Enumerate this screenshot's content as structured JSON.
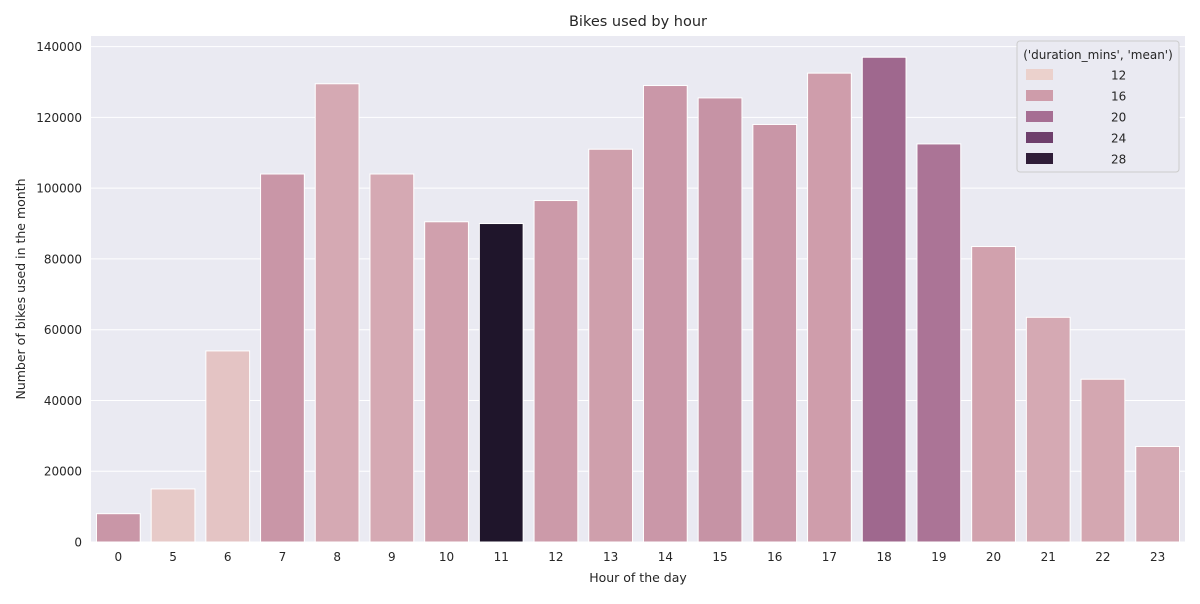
{
  "chart_data": {
    "type": "bar",
    "title": "Bikes used by hour",
    "xlabel": "Hour of the day",
    "ylabel": "Number of bikes used in the month",
    "categories": [
      "0",
      "5",
      "6",
      "7",
      "8",
      "9",
      "10",
      "11",
      "12",
      "13",
      "14",
      "15",
      "16",
      "17",
      "18",
      "19",
      "20",
      "21",
      "22",
      "23"
    ],
    "values": [
      8000,
      15000,
      54000,
      104000,
      129500,
      104000,
      90500,
      90000,
      96500,
      111000,
      129000,
      125500,
      118000,
      132500,
      137000,
      112500,
      83500,
      63500,
      46000,
      27000
    ],
    "hue_values": [
      16.5,
      12.5,
      13.0,
      16.5,
      15.0,
      15.0,
      15.7,
      29.0,
      16.2,
      15.8,
      16.4,
      16.8,
      16.5,
      15.9,
      20.5,
      19.5,
      15.6,
      15.0,
      15.2,
      15.0
    ],
    "ylim": [
      0,
      143000
    ],
    "yticks": [
      "0",
      "20000",
      "40000",
      "60000",
      "80000",
      "100000",
      "120000",
      "140000"
    ],
    "ytick_values": [
      0,
      20000,
      40000,
      60000,
      80000,
      100000,
      120000,
      140000
    ],
    "grid": true,
    "legend": {
      "title": "('duration_mins', 'mean')",
      "placement": "top-right",
      "entries": [
        {
          "label": "12",
          "value": 12,
          "color": "#ebd1cc"
        },
        {
          "label": "16",
          "value": 16,
          "color": "#ce9caa"
        },
        {
          "label": "20",
          "value": 20,
          "color": "#a66e93"
        },
        {
          "label": "24",
          "value": 24,
          "color": "#6e3f6c"
        },
        {
          "label": "28",
          "value": 28,
          "color": "#2f1d38"
        }
      ]
    },
    "colors": {
      "background": "#eaeaf2",
      "grid": "#ffffff",
      "bar_edge": "#ffffff"
    }
  }
}
